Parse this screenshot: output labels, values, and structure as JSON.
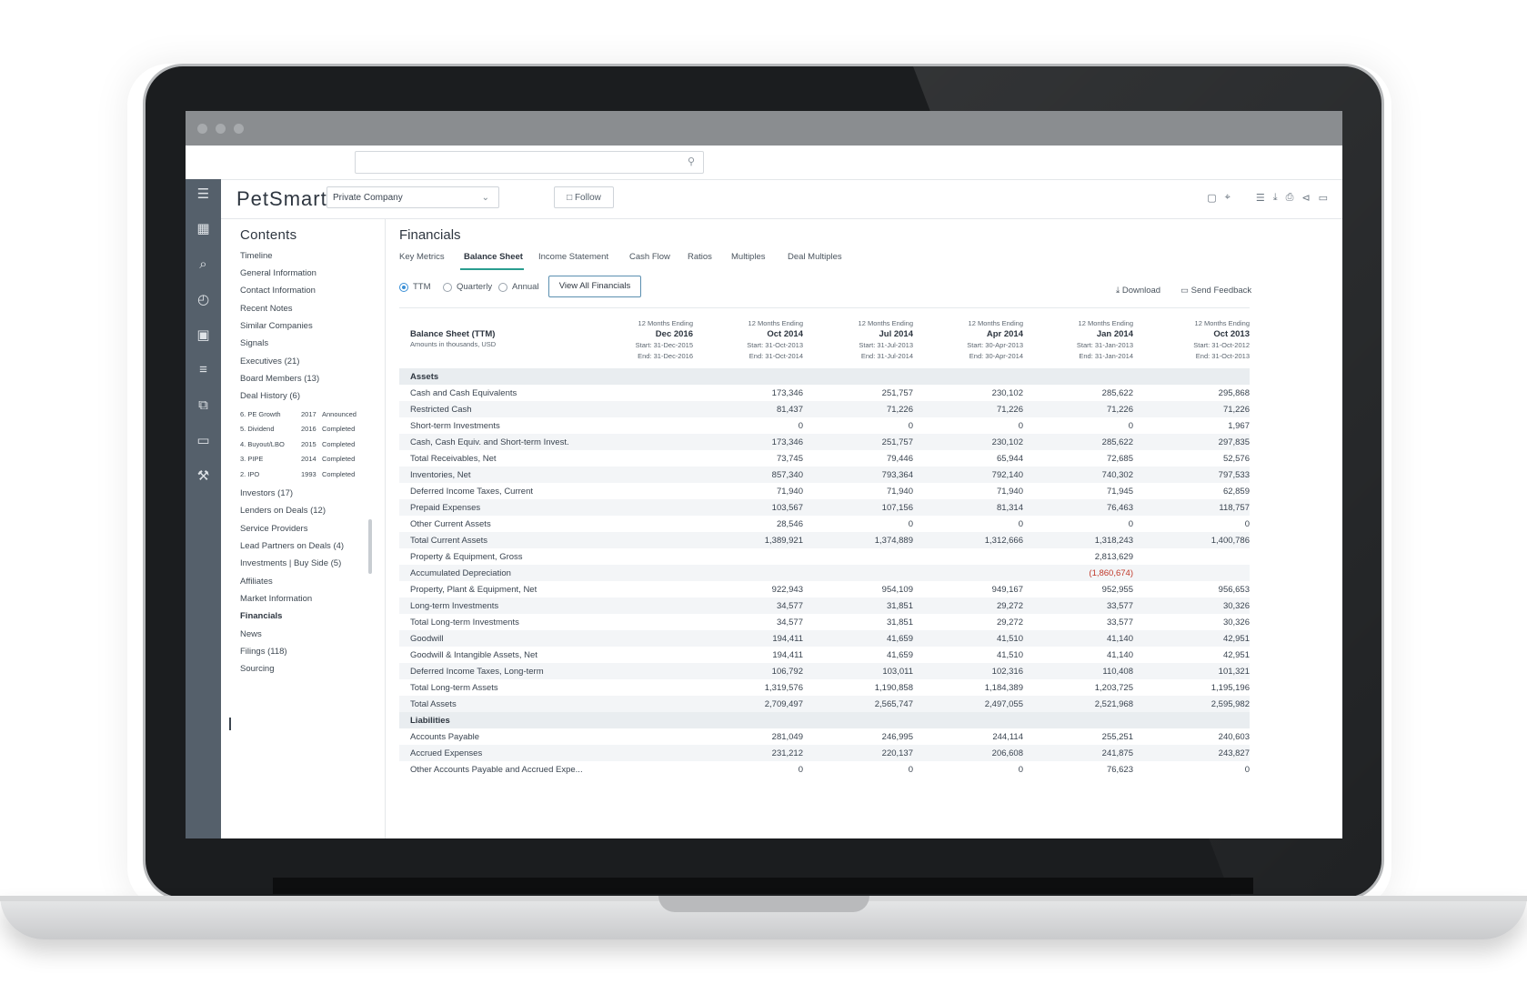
{
  "app": {
    "company_name": "PetSmart",
    "company_type": "Private Company",
    "follow_label": "Follow",
    "toolbar_icons": [
      "note-icon",
      "attach-icon",
      "list-icon",
      "download-icon",
      "print-icon",
      "share-icon",
      "comment-icon"
    ]
  },
  "nav_icons": [
    "menu-icon",
    "dashboard-icon",
    "search-icon",
    "history-icon",
    "save-icon",
    "list-icon",
    "copy-icon",
    "card-icon",
    "wrench-icon"
  ],
  "contents": {
    "title": "Contents",
    "items_top": [
      "Timeline",
      "General Information",
      "Contact Information",
      "Recent Notes",
      "Similar Companies",
      "Signals",
      "Executives (21)",
      "Board Members (13)",
      "Deal History (6)"
    ],
    "deals": [
      {
        "name": "6. PE Growth",
        "year": "2017",
        "status": "Announced"
      },
      {
        "name": "5. Dividend",
        "year": "2016",
        "status": "Completed"
      },
      {
        "name": "4. Buyout/LBO",
        "year": "2015",
        "status": "Completed"
      },
      {
        "name": "3. PIPE",
        "year": "2014",
        "status": "Completed"
      },
      {
        "name": "2. IPO",
        "year": "1993",
        "status": "Completed"
      }
    ],
    "items_bottom": [
      "Investors (17)",
      "Lenders on Deals (12)",
      "Service Providers",
      "Lead Partners on Deals (4)",
      "Investments | Buy Side (5)",
      "Affiliates",
      "Market Information",
      "Financials",
      "News",
      "Filings (118)",
      "Sourcing"
    ]
  },
  "financials": {
    "title": "Financials",
    "tabs": [
      "Key Metrics",
      "Balance Sheet",
      "Income Statement",
      "Cash Flow",
      "Ratios",
      "Multiples",
      "Deal Multiples"
    ],
    "period_options": [
      "TTM",
      "Quarterly",
      "Annual"
    ],
    "view_all_label": "View All Financials",
    "download_label": "Download",
    "feedback_label": "Send Feedback",
    "table_title": "Balance Sheet (TTM)",
    "table_subtitle": "Amounts in thousands, USD",
    "columns": [
      {
        "pre": "12 Months Ending",
        "period": "Dec 2016",
        "start": "Start: 31-Dec-2015",
        "end": "End: 31-Dec-2016"
      },
      {
        "pre": "12 Months Ending",
        "period": "Oct 2014",
        "start": "Start: 31-Oct-2013",
        "end": "End: 31-Oct-2014"
      },
      {
        "pre": "12 Months Ending",
        "period": "Jul 2014",
        "start": "Start: 31-Jul-2013",
        "end": "End: 31-Jul-2014"
      },
      {
        "pre": "12 Months Ending",
        "period": "Apr 2014",
        "start": "Start: 30-Apr-2013",
        "end": "End: 30-Apr-2014"
      },
      {
        "pre": "12 Months Ending",
        "period": "Jan 2014",
        "start": "Start: 31-Jan-2013",
        "end": "End: 31-Jan-2014"
      },
      {
        "pre": "12 Months Ending",
        "period": "Oct 2013",
        "start": "Start: 31-Oct-2012",
        "end": "End: 31-Oct-2013"
      }
    ],
    "rows": [
      {
        "section": "Assets"
      },
      {
        "label": "Cash and Cash Equivalents",
        "values": [
          "",
          "173,346",
          "251,757",
          "230,102",
          "285,622",
          "295,868"
        ]
      },
      {
        "label": "Restricted Cash",
        "values": [
          "",
          "81,437",
          "71,226",
          "71,226",
          "71,226",
          "71,226"
        ]
      },
      {
        "label": "Short-term Investments",
        "values": [
          "",
          "0",
          "0",
          "0",
          "0",
          "1,967"
        ]
      },
      {
        "label": "Cash, Cash Equiv. and Short-term Invest.",
        "values": [
          "",
          "173,346",
          "251,757",
          "230,102",
          "285,622",
          "297,835"
        ]
      },
      {
        "label": "Total Receivables, Net",
        "values": [
          "",
          "73,745",
          "79,446",
          "65,944",
          "72,685",
          "52,576"
        ]
      },
      {
        "label": "Inventories, Net",
        "values": [
          "",
          "857,340",
          "793,364",
          "792,140",
          "740,302",
          "797,533"
        ]
      },
      {
        "label": "Deferred Income Taxes, Current",
        "values": [
          "",
          "71,940",
          "71,940",
          "71,940",
          "71,945",
          "62,859"
        ]
      },
      {
        "label": "Prepaid Expenses",
        "values": [
          "",
          "103,567",
          "107,156",
          "81,314",
          "76,463",
          "118,757"
        ]
      },
      {
        "label": "Other Current Assets",
        "values": [
          "",
          "28,546",
          "0",
          "0",
          "0",
          "0"
        ]
      },
      {
        "label": "Total Current Assets",
        "values": [
          "",
          "1,389,921",
          "1,374,889",
          "1,312,666",
          "1,318,243",
          "1,400,786"
        ]
      },
      {
        "label": "Property & Equipment, Gross",
        "values": [
          "",
          "",
          "",
          "",
          "2,813,629",
          ""
        ]
      },
      {
        "label": "Accumulated Depreciation",
        "values": [
          "",
          "",
          "",
          "",
          "(1,860,674)",
          ""
        ]
      },
      {
        "label": "Property, Plant & Equipment, Net",
        "values": [
          "",
          "922,943",
          "954,109",
          "949,167",
          "952,955",
          "956,653"
        ]
      },
      {
        "label": "Long-term Investments",
        "values": [
          "",
          "34,577",
          "31,851",
          "29,272",
          "33,577",
          "30,326"
        ]
      },
      {
        "label": "Total Long-term Investments",
        "values": [
          "",
          "34,577",
          "31,851",
          "29,272",
          "33,577",
          "30,326"
        ]
      },
      {
        "label": "Goodwill",
        "values": [
          "",
          "194,411",
          "41,659",
          "41,510",
          "41,140",
          "42,951"
        ]
      },
      {
        "label": "Goodwill & Intangible Assets, Net",
        "values": [
          "",
          "194,411",
          "41,659",
          "41,510",
          "41,140",
          "42,951"
        ]
      },
      {
        "label": "Deferred Income Taxes, Long-term",
        "values": [
          "",
          "106,792",
          "103,011",
          "102,316",
          "110,408",
          "101,321"
        ]
      },
      {
        "label": "Total Long-term Assets",
        "values": [
          "",
          "1,319,576",
          "1,190,858",
          "1,184,389",
          "1,203,725",
          "1,195,196"
        ]
      },
      {
        "label": "Total Assets",
        "values": [
          "",
          "2,709,497",
          "2,565,747",
          "2,497,055",
          "2,521,968",
          "2,595,982"
        ]
      },
      {
        "section": "Liabilities"
      },
      {
        "label": "Accounts Payable",
        "values": [
          "",
          "281,049",
          "246,995",
          "244,114",
          "255,251",
          "240,603"
        ]
      },
      {
        "label": "Accrued Expenses",
        "values": [
          "",
          "231,212",
          "220,137",
          "206,608",
          "241,875",
          "243,827"
        ]
      },
      {
        "label": "Other Accounts Payable and Accrued Expe...",
        "values": [
          "",
          "0",
          "0",
          "0",
          "76,623",
          "0"
        ]
      }
    ]
  }
}
